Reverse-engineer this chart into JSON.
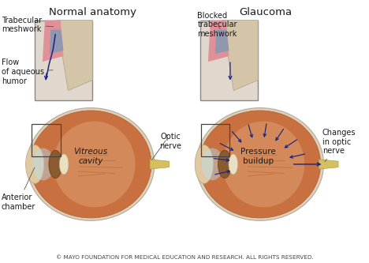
{
  "title_left": "Normal anatomy",
  "title_right": "Glaucoma",
  "label_trabecular": "Trabecular\nmeshwork",
  "label_flow": "Flow\nof aqueous\nhumor",
  "label_blocked": "Blocked\ntrabecular\nmeshwork",
  "label_optic": "Optic\nnerve",
  "label_vitreous": "Vitreous\ncavity",
  "label_anterior": "Anterior\nchamber",
  "label_pressure": "Pressure\nbuildup",
  "label_changes": "Changes\nin optic\nnerve",
  "copyright": "© MAYO FOUNDATION FOR MEDICAL EDUCATION AND RESEARCH. ALL RIGHTS RESERVED.",
  "arrow_color": "#1a237e",
  "text_color": "#1a1a1a",
  "title_fontsize": 9.5,
  "label_fontsize": 7.0,
  "copyright_fontsize": 5.2
}
